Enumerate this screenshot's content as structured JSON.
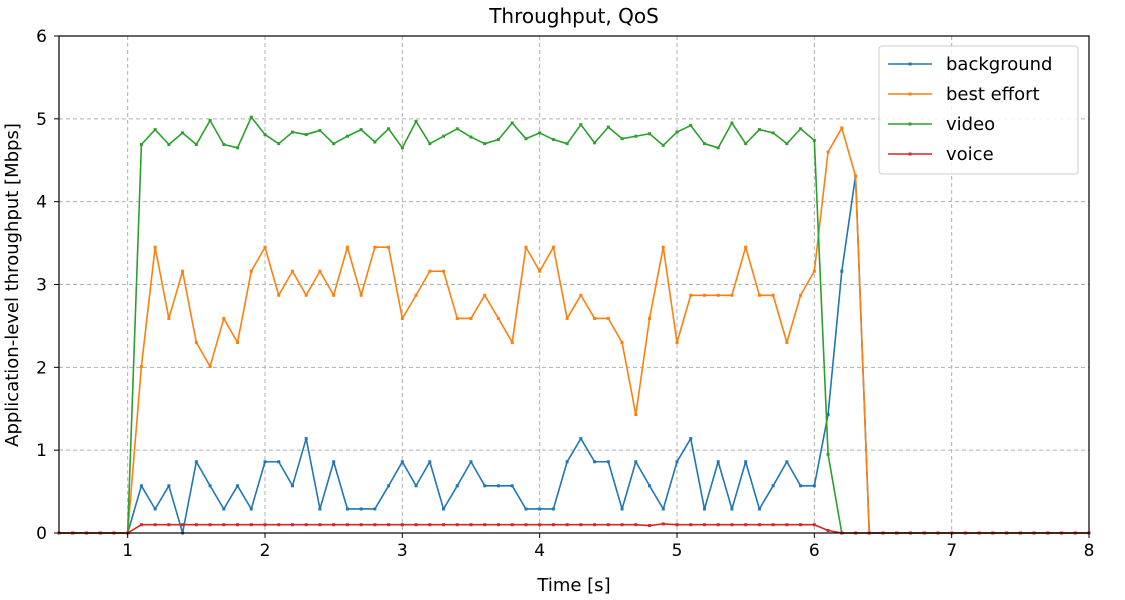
{
  "chart_data": {
    "type": "line",
    "title": "Throughput, QoS",
    "xlabel": "Time [s]",
    "ylabel": "Application-level throughput [Mbps]",
    "xlim": [
      0.5,
      8
    ],
    "ylim": [
      0,
      6
    ],
    "xticks": [
      1,
      2,
      3,
      4,
      5,
      6,
      7,
      8
    ],
    "yticks": [
      0,
      1,
      2,
      3,
      4,
      5,
      6
    ],
    "grid": true,
    "grid_style": "dashed",
    "legend_position": "top-right",
    "series": [
      {
        "name": "background",
        "color": "#1f77b4",
        "points": [
          [
            0.5,
            0
          ],
          [
            0.6,
            0
          ],
          [
            0.7,
            0
          ],
          [
            0.8,
            0
          ],
          [
            0.9,
            0
          ],
          [
            1.0,
            0
          ],
          [
            1.1,
            0.57
          ],
          [
            1.2,
            0.29
          ],
          [
            1.3,
            0.57
          ],
          [
            1.4,
            0.0
          ],
          [
            1.5,
            0.86
          ],
          [
            1.6,
            0.57
          ],
          [
            1.7,
            0.29
          ],
          [
            1.8,
            0.57
          ],
          [
            1.9,
            0.29
          ],
          [
            2.0,
            0.86
          ],
          [
            2.1,
            0.86
          ],
          [
            2.2,
            0.57
          ],
          [
            2.3,
            1.14
          ],
          [
            2.4,
            0.29
          ],
          [
            2.5,
            0.86
          ],
          [
            2.6,
            0.29
          ],
          [
            2.7,
            0.29
          ],
          [
            2.8,
            0.29
          ],
          [
            2.9,
            0.57
          ],
          [
            3.0,
            0.86
          ],
          [
            3.1,
            0.57
          ],
          [
            3.2,
            0.86
          ],
          [
            3.3,
            0.29
          ],
          [
            3.4,
            0.57
          ],
          [
            3.5,
            0.86
          ],
          [
            3.6,
            0.57
          ],
          [
            3.7,
            0.57
          ],
          [
            3.8,
            0.57
          ],
          [
            3.9,
            0.29
          ],
          [
            4.0,
            0.29
          ],
          [
            4.1,
            0.29
          ],
          [
            4.2,
            0.86
          ],
          [
            4.3,
            1.14
          ],
          [
            4.4,
            0.86
          ],
          [
            4.5,
            0.86
          ],
          [
            4.6,
            0.29
          ],
          [
            4.7,
            0.86
          ],
          [
            4.8,
            0.57
          ],
          [
            4.9,
            0.29
          ],
          [
            5.0,
            0.86
          ],
          [
            5.1,
            1.14
          ],
          [
            5.2,
            0.29
          ],
          [
            5.3,
            0.86
          ],
          [
            5.4,
            0.29
          ],
          [
            5.5,
            0.86
          ],
          [
            5.6,
            0.29
          ],
          [
            5.7,
            0.57
          ],
          [
            5.8,
            0.86
          ],
          [
            5.9,
            0.57
          ],
          [
            6.0,
            0.57
          ],
          [
            6.1,
            1.43
          ],
          [
            6.2,
            3.16
          ],
          [
            6.3,
            4.31
          ],
          [
            6.4,
            0
          ],
          [
            6.5,
            0
          ],
          [
            6.6,
            0
          ],
          [
            6.7,
            0
          ],
          [
            6.8,
            0
          ],
          [
            6.9,
            0
          ],
          [
            7.0,
            0
          ],
          [
            7.1,
            0
          ],
          [
            7.2,
            0
          ],
          [
            7.3,
            0
          ],
          [
            7.4,
            0
          ],
          [
            7.5,
            0
          ],
          [
            7.6,
            0
          ],
          [
            7.7,
            0
          ],
          [
            7.8,
            0
          ],
          [
            7.9,
            0
          ],
          [
            8.0,
            0
          ]
        ]
      },
      {
        "name": "best effort",
        "color": "#ff7f0e",
        "points": [
          [
            0.5,
            0
          ],
          [
            0.6,
            0
          ],
          [
            0.7,
            0
          ],
          [
            0.8,
            0
          ],
          [
            0.9,
            0
          ],
          [
            1.0,
            0
          ],
          [
            1.1,
            2.01
          ],
          [
            1.2,
            3.45
          ],
          [
            1.3,
            2.59
          ],
          [
            1.4,
            3.16
          ],
          [
            1.5,
            2.3
          ],
          [
            1.6,
            2.01
          ],
          [
            1.7,
            2.59
          ],
          [
            1.8,
            2.3
          ],
          [
            1.9,
            3.16
          ],
          [
            2.0,
            3.45
          ],
          [
            2.1,
            2.87
          ],
          [
            2.2,
            3.16
          ],
          [
            2.3,
            2.87
          ],
          [
            2.4,
            3.16
          ],
          [
            2.5,
            2.87
          ],
          [
            2.6,
            3.45
          ],
          [
            2.7,
            2.87
          ],
          [
            2.8,
            3.45
          ],
          [
            2.9,
            3.45
          ],
          [
            3.0,
            2.59
          ],
          [
            3.1,
            2.87
          ],
          [
            3.2,
            3.16
          ],
          [
            3.3,
            3.16
          ],
          [
            3.4,
            2.59
          ],
          [
            3.5,
            2.59
          ],
          [
            3.6,
            2.87
          ],
          [
            3.7,
            2.59
          ],
          [
            3.8,
            2.3
          ],
          [
            3.9,
            3.45
          ],
          [
            4.0,
            3.16
          ],
          [
            4.1,
            3.45
          ],
          [
            4.2,
            2.59
          ],
          [
            4.3,
            2.87
          ],
          [
            4.4,
            2.59
          ],
          [
            4.5,
            2.59
          ],
          [
            4.6,
            2.3
          ],
          [
            4.7,
            1.43
          ],
          [
            4.8,
            2.59
          ],
          [
            4.9,
            3.45
          ],
          [
            5.0,
            2.3
          ],
          [
            5.1,
            2.87
          ],
          [
            5.2,
            2.87
          ],
          [
            5.3,
            2.87
          ],
          [
            5.4,
            2.87
          ],
          [
            5.5,
            3.45
          ],
          [
            5.6,
            2.87
          ],
          [
            5.7,
            2.87
          ],
          [
            5.8,
            2.3
          ],
          [
            5.9,
            2.87
          ],
          [
            6.0,
            3.16
          ],
          [
            6.1,
            4.6
          ],
          [
            6.2,
            4.89
          ],
          [
            6.3,
            4.31
          ],
          [
            6.4,
            0
          ],
          [
            6.5,
            0
          ],
          [
            6.6,
            0
          ],
          [
            6.7,
            0
          ],
          [
            6.8,
            0
          ],
          [
            6.9,
            0
          ],
          [
            7.0,
            0
          ],
          [
            7.1,
            0
          ],
          [
            7.2,
            0
          ],
          [
            7.3,
            0
          ],
          [
            7.4,
            0
          ],
          [
            7.5,
            0
          ],
          [
            7.6,
            0
          ],
          [
            7.7,
            0
          ],
          [
            7.8,
            0
          ],
          [
            7.9,
            0
          ],
          [
            8.0,
            0
          ]
        ]
      },
      {
        "name": "video",
        "color": "#2ca02c",
        "points": [
          [
            0.5,
            0
          ],
          [
            0.6,
            0
          ],
          [
            0.7,
            0
          ],
          [
            0.8,
            0
          ],
          [
            0.9,
            0
          ],
          [
            1.0,
            0
          ],
          [
            1.1,
            4.69
          ],
          [
            1.2,
            4.87
          ],
          [
            1.3,
            4.69
          ],
          [
            1.4,
            4.83
          ],
          [
            1.5,
            4.69
          ],
          [
            1.6,
            4.98
          ],
          [
            1.7,
            4.69
          ],
          [
            1.8,
            4.65
          ],
          [
            1.9,
            5.02
          ],
          [
            2.0,
            4.81
          ],
          [
            2.1,
            4.7
          ],
          [
            2.2,
            4.84
          ],
          [
            2.3,
            4.81
          ],
          [
            2.4,
            4.86
          ],
          [
            2.5,
            4.7
          ],
          [
            2.6,
            4.79
          ],
          [
            2.7,
            4.87
          ],
          [
            2.8,
            4.72
          ],
          [
            2.9,
            4.88
          ],
          [
            3.0,
            4.65
          ],
          [
            3.1,
            4.97
          ],
          [
            3.2,
            4.7
          ],
          [
            3.3,
            4.79
          ],
          [
            3.4,
            4.88
          ],
          [
            3.5,
            4.78
          ],
          [
            3.6,
            4.7
          ],
          [
            3.7,
            4.75
          ],
          [
            3.8,
            4.95
          ],
          [
            3.9,
            4.76
          ],
          [
            4.0,
            4.83
          ],
          [
            4.1,
            4.75
          ],
          [
            4.2,
            4.7
          ],
          [
            4.3,
            4.93
          ],
          [
            4.4,
            4.71
          ],
          [
            4.5,
            4.9
          ],
          [
            4.6,
            4.76
          ],
          [
            4.7,
            4.79
          ],
          [
            4.8,
            4.82
          ],
          [
            4.9,
            4.68
          ],
          [
            5.0,
            4.84
          ],
          [
            5.1,
            4.92
          ],
          [
            5.2,
            4.7
          ],
          [
            5.3,
            4.65
          ],
          [
            5.4,
            4.95
          ],
          [
            5.5,
            4.7
          ],
          [
            5.6,
            4.87
          ],
          [
            5.7,
            4.83
          ],
          [
            5.8,
            4.7
          ],
          [
            5.9,
            4.88
          ],
          [
            6.0,
            4.74
          ],
          [
            6.1,
            0.95
          ],
          [
            6.2,
            0
          ],
          [
            6.3,
            0
          ],
          [
            6.4,
            0
          ],
          [
            6.5,
            0
          ],
          [
            6.6,
            0
          ],
          [
            6.7,
            0
          ],
          [
            6.8,
            0
          ],
          [
            6.9,
            0
          ],
          [
            7.0,
            0
          ],
          [
            7.1,
            0
          ],
          [
            7.2,
            0
          ],
          [
            7.3,
            0
          ],
          [
            7.4,
            0
          ],
          [
            7.5,
            0
          ],
          [
            7.6,
            0
          ],
          [
            7.7,
            0
          ],
          [
            7.8,
            0
          ],
          [
            7.9,
            0
          ],
          [
            8.0,
            0
          ]
        ]
      },
      {
        "name": "voice",
        "color": "#d62728",
        "points": [
          [
            0.5,
            0
          ],
          [
            0.6,
            0
          ],
          [
            0.7,
            0
          ],
          [
            0.8,
            0
          ],
          [
            0.9,
            0
          ],
          [
            1.0,
            0
          ],
          [
            1.1,
            0.1
          ],
          [
            1.2,
            0.1
          ],
          [
            1.3,
            0.1
          ],
          [
            1.4,
            0.1
          ],
          [
            1.5,
            0.1
          ],
          [
            1.6,
            0.1
          ],
          [
            1.7,
            0.1
          ],
          [
            1.8,
            0.1
          ],
          [
            1.9,
            0.1
          ],
          [
            2.0,
            0.1
          ],
          [
            2.1,
            0.1
          ],
          [
            2.2,
            0.1
          ],
          [
            2.3,
            0.1
          ],
          [
            2.4,
            0.1
          ],
          [
            2.5,
            0.1
          ],
          [
            2.6,
            0.1
          ],
          [
            2.7,
            0.1
          ],
          [
            2.8,
            0.1
          ],
          [
            2.9,
            0.1
          ],
          [
            3.0,
            0.1
          ],
          [
            3.1,
            0.1
          ],
          [
            3.2,
            0.1
          ],
          [
            3.3,
            0.1
          ],
          [
            3.4,
            0.1
          ],
          [
            3.5,
            0.1
          ],
          [
            3.6,
            0.1
          ],
          [
            3.7,
            0.1
          ],
          [
            3.8,
            0.1
          ],
          [
            3.9,
            0.1
          ],
          [
            4.0,
            0.1
          ],
          [
            4.1,
            0.1
          ],
          [
            4.2,
            0.1
          ],
          [
            4.3,
            0.1
          ],
          [
            4.4,
            0.1
          ],
          [
            4.5,
            0.1
          ],
          [
            4.6,
            0.1
          ],
          [
            4.7,
            0.1
          ],
          [
            4.8,
            0.09
          ],
          [
            4.9,
            0.11
          ],
          [
            5.0,
            0.1
          ],
          [
            5.1,
            0.1
          ],
          [
            5.2,
            0.1
          ],
          [
            5.3,
            0.1
          ],
          [
            5.4,
            0.1
          ],
          [
            5.5,
            0.1
          ],
          [
            5.6,
            0.1
          ],
          [
            5.7,
            0.1
          ],
          [
            5.8,
            0.1
          ],
          [
            5.9,
            0.1
          ],
          [
            6.0,
            0.1
          ],
          [
            6.1,
            0.03
          ],
          [
            6.2,
            0
          ],
          [
            6.3,
            0
          ],
          [
            6.4,
            0
          ],
          [
            6.5,
            0
          ],
          [
            6.6,
            0
          ],
          [
            6.7,
            0
          ],
          [
            6.8,
            0
          ],
          [
            6.9,
            0
          ],
          [
            7.0,
            0
          ],
          [
            7.1,
            0
          ],
          [
            7.2,
            0
          ],
          [
            7.3,
            0
          ],
          [
            7.4,
            0
          ],
          [
            7.5,
            0
          ],
          [
            7.6,
            0
          ],
          [
            7.7,
            0
          ],
          [
            7.8,
            0
          ],
          [
            7.9,
            0
          ],
          [
            8.0,
            0
          ]
        ]
      }
    ]
  }
}
